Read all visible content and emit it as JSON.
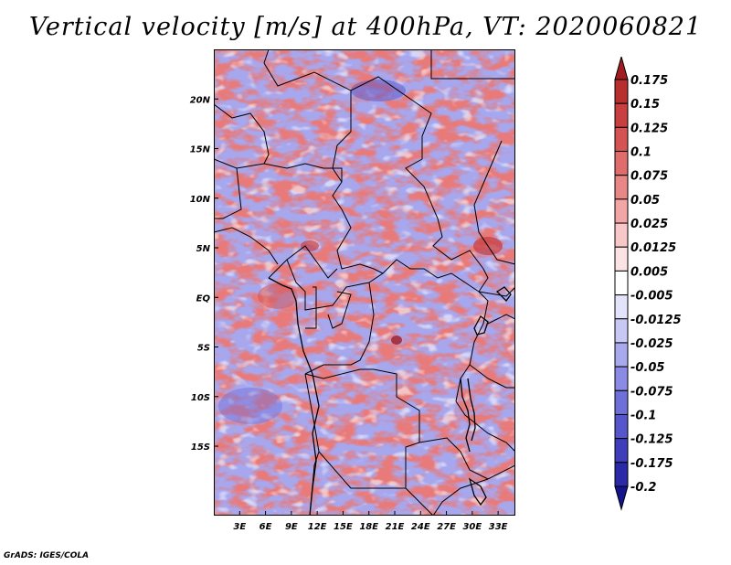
{
  "title": "Vertical velocity [m/s] at 400hPa, VT: 2020060821",
  "credit": "GrADS: IGES/COLA",
  "chart_data": {
    "type": "heatmap",
    "title": "Vertical velocity [m/s] at 400hPa, VT: 2020060821",
    "variable": "Vertical velocity",
    "units": "m/s",
    "level": "400hPa",
    "valid_time": "2020060821",
    "lon_range": [
      0,
      35
    ],
    "lat_range": [
      -22,
      25
    ],
    "x_ticks": [
      {
        "label": "3E",
        "value": 3
      },
      {
        "label": "6E",
        "value": 6
      },
      {
        "label": "9E",
        "value": 9
      },
      {
        "label": "12E",
        "value": 12
      },
      {
        "label": "15E",
        "value": 15
      },
      {
        "label": "18E",
        "value": 18
      },
      {
        "label": "21E",
        "value": 21
      },
      {
        "label": "24E",
        "value": 24
      },
      {
        "label": "27E",
        "value": 27
      },
      {
        "label": "30E",
        "value": 30
      },
      {
        "label": "33E",
        "value": 33
      }
    ],
    "y_ticks": [
      {
        "label": "20N",
        "value": 20
      },
      {
        "label": "15N",
        "value": 15
      },
      {
        "label": "10N",
        "value": 10
      },
      {
        "label": "5N",
        "value": 5
      },
      {
        "label": "EQ",
        "value": 0
      },
      {
        "label": "5S",
        "value": -5
      },
      {
        "label": "10S",
        "value": -10
      },
      {
        "label": "15S",
        "value": -15
      }
    ],
    "colorbar": {
      "labels": [
        "0.175",
        "0.15",
        "0.125",
        "0.1",
        "0.075",
        "0.05",
        "0.025",
        "0.0125",
        "0.005",
        "-0.005",
        "-0.0125",
        "-0.025",
        "-0.05",
        "-0.075",
        "-0.1",
        "-0.125",
        "-0.175",
        "-0.2"
      ],
      "colors": [
        "#a01c20",
        "#b72f2f",
        "#c93e3e",
        "#d65353",
        "#e06c6c",
        "#e98787",
        "#f2a6a6",
        "#f8c8c8",
        "#fbe3e3",
        "#ffffff",
        "#e3e3fb",
        "#c8c8f4",
        "#a9a9ee",
        "#8b8be5",
        "#6f6fd9",
        "#5555cc",
        "#3e3ebb",
        "#2a2aa8",
        "#14148c"
      ]
    }
  }
}
